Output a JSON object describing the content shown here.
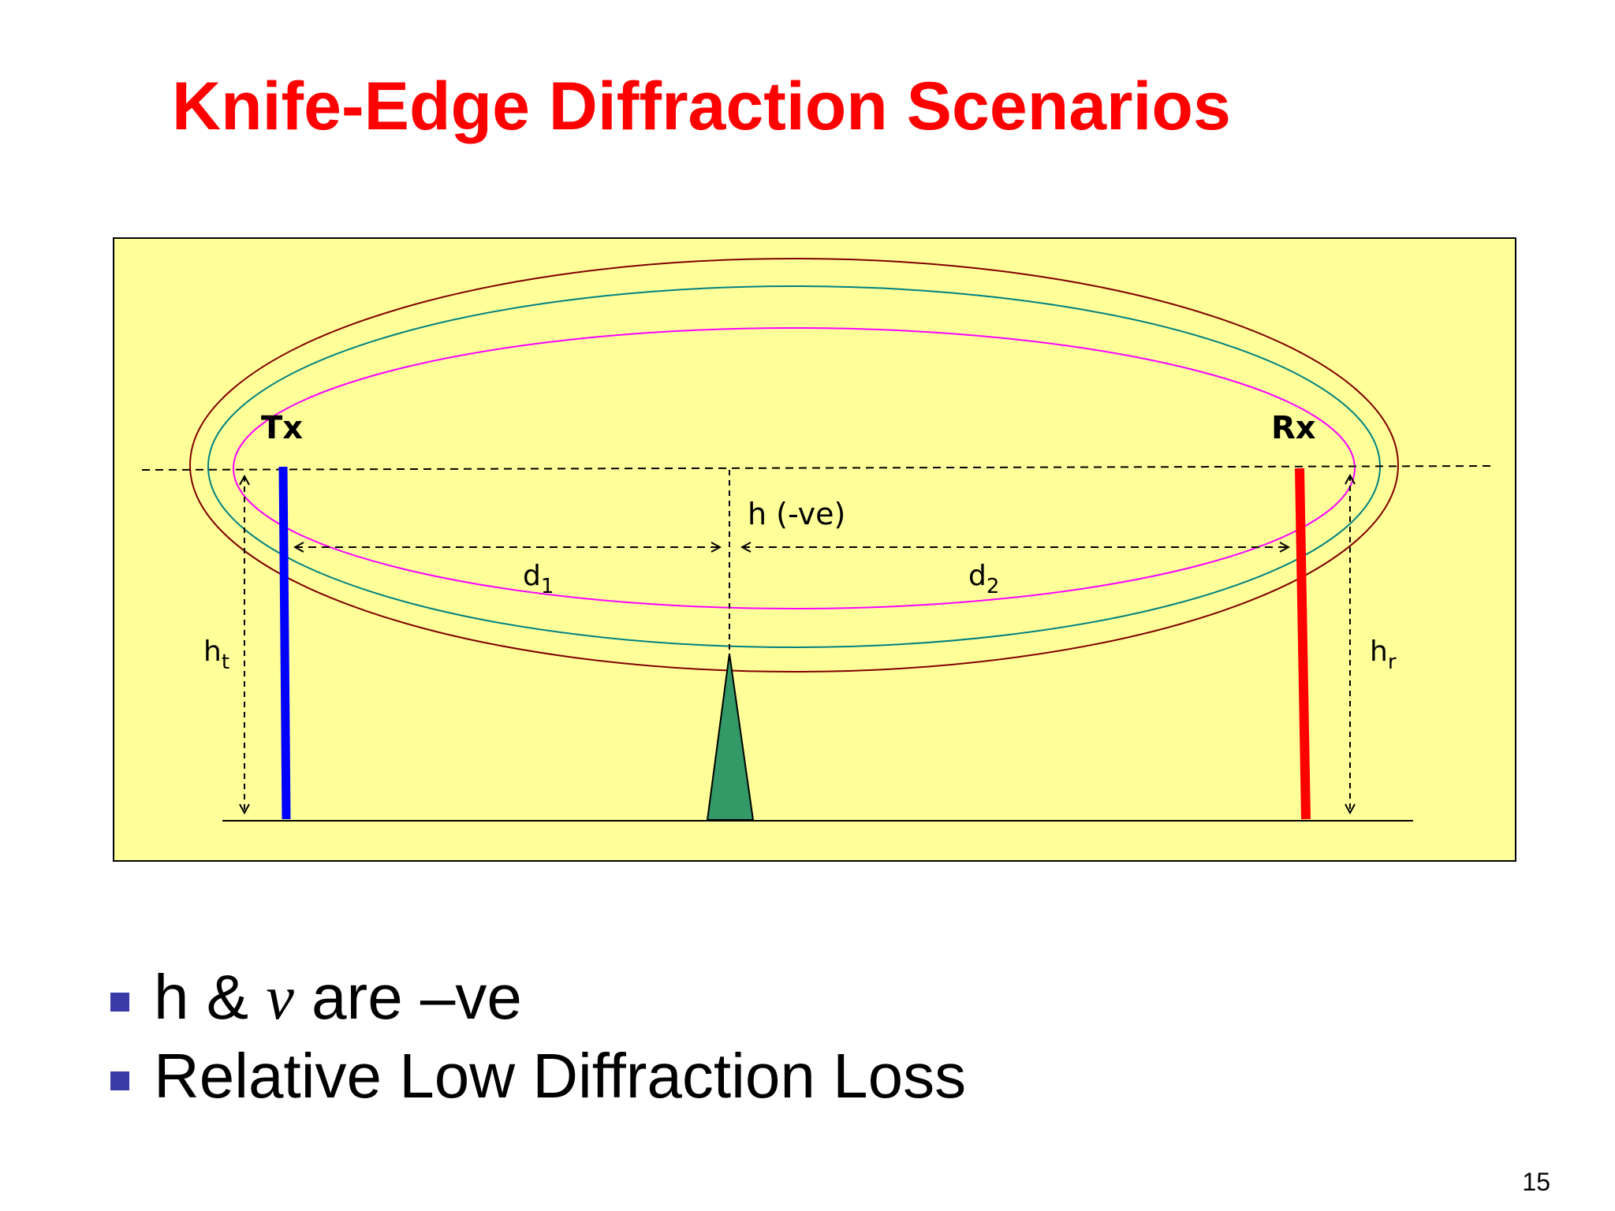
{
  "slide": {
    "title": "Knife-Edge Diffraction Scenarios",
    "page_number": "15"
  },
  "diagram": {
    "background_color": "#ffff99",
    "transmitter": {
      "label": "Tx",
      "color": "#0000ff"
    },
    "receiver": {
      "label": "Rx",
      "color": "#ff0000"
    },
    "obstacle": {
      "color": "#339966"
    },
    "labels": {
      "h": "h (-ve)",
      "d1_main": "d",
      "d1_sub": "1",
      "d2_main": "d",
      "d2_sub": "2",
      "ht_main": "h",
      "ht_sub": "t",
      "hr_main": "h",
      "hr_sub": "r"
    },
    "fresnel_zone_colors": [
      "#800000",
      "#008080",
      "#ff00ff"
    ]
  },
  "bullets": {
    "item1": {
      "prefix": "h & ",
      "variable": "v",
      "suffix": " are –ve"
    },
    "item2": "Relative Low Diffraction Loss"
  },
  "colors": {
    "title": "#ff0000",
    "bullet_marker": "#3a3aa8"
  }
}
